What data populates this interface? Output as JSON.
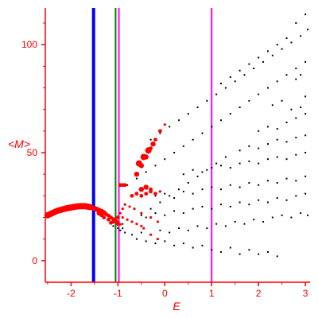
{
  "chart_data": {
    "type": "scatter",
    "title": "",
    "xlabel": "E",
    "ylabel": "<M>",
    "xlim": [
      -2.55,
      3.1
    ],
    "ylim": [
      -10,
      117
    ],
    "x_ticks": [
      -2,
      -1,
      0,
      1,
      2,
      3
    ],
    "x_tick_labels": [
      "-2",
      "-1",
      "0",
      "1",
      "2",
      "3"
    ],
    "y_ticks": [
      0,
      50,
      100
    ],
    "y_tick_labels": [
      "0",
      "50",
      "100"
    ],
    "grid": false,
    "colors": {
      "axis": "#ff0000",
      "black_points": "#000000",
      "red_points": "#ff0000",
      "blue_line": "#0000ff",
      "green_line": "#008000",
      "magenta_line": "#ff00ff"
    },
    "vertical_lines": [
      {
        "x": -1.52,
        "color": "#0000ff"
      },
      {
        "x": -1.05,
        "color": "#008000"
      },
      {
        "x": -0.98,
        "color": "#ff00ff"
      },
      {
        "x": 1.0,
        "color": "#ff00ff"
      }
    ],
    "series": [
      {
        "color": "#000000",
        "marker_size": "small",
        "points": [
          [
            -0.9,
            15
          ],
          [
            -0.7,
            18
          ],
          [
            -0.5,
            21
          ],
          [
            -0.3,
            24
          ],
          [
            -0.1,
            27
          ],
          [
            0.1,
            30
          ],
          [
            0.3,
            33
          ],
          [
            0.5,
            36
          ],
          [
            0.7,
            39
          ],
          [
            0.9,
            42
          ],
          [
            1.1,
            45
          ],
          [
            1.3,
            48
          ],
          [
            -0.8,
            35
          ],
          [
            -0.6,
            38
          ],
          [
            -0.4,
            41
          ],
          [
            -0.2,
            44
          ],
          [
            0.0,
            47
          ],
          [
            0.2,
            50
          ],
          [
            0.4,
            53
          ],
          [
            0.6,
            56
          ],
          [
            0.8,
            59
          ],
          [
            1.0,
            62
          ],
          [
            1.2,
            65
          ],
          [
            1.4,
            68
          ],
          [
            1.6,
            71
          ],
          [
            1.8,
            74
          ],
          [
            2.0,
            77
          ],
          [
            2.2,
            80
          ],
          [
            2.4,
            83
          ],
          [
            2.6,
            86
          ],
          [
            2.8,
            89
          ],
          [
            3.0,
            92
          ],
          [
            -0.3,
            56
          ],
          [
            -0.1,
            59
          ],
          [
            0.1,
            62
          ],
          [
            0.3,
            65
          ],
          [
            0.5,
            68
          ],
          [
            0.7,
            71
          ],
          [
            0.9,
            74
          ],
          [
            1.1,
            77
          ],
          [
            1.3,
            80
          ],
          [
            1.5,
            83
          ],
          [
            1.7,
            86
          ],
          [
            1.9,
            89
          ],
          [
            2.1,
            92
          ],
          [
            2.3,
            95
          ],
          [
            2.5,
            98
          ],
          [
            2.7,
            101
          ],
          [
            2.9,
            104
          ],
          [
            3.05,
            107
          ],
          [
            1.2,
            82
          ],
          [
            1.4,
            85
          ],
          [
            1.6,
            88
          ],
          [
            1.8,
            91
          ],
          [
            2.0,
            94
          ],
          [
            2.2,
            97
          ],
          [
            2.4,
            100
          ],
          [
            2.6,
            103
          ],
          [
            2.8,
            110
          ],
          [
            3.0,
            114
          ],
          [
            -0.6,
            10
          ],
          [
            -0.4,
            9
          ],
          [
            -0.2,
            8
          ],
          [
            0.0,
            9
          ],
          [
            0.2,
            7
          ],
          [
            0.4,
            8
          ],
          [
            0.6,
            6
          ],
          [
            0.8,
            7
          ],
          [
            1.0,
            5
          ],
          [
            1.2,
            4
          ],
          [
            1.4,
            6
          ],
          [
            1.6,
            3
          ],
          [
            1.8,
            5
          ],
          [
            2.0,
            3
          ],
          [
            2.2,
            4
          ],
          [
            2.4,
            2
          ],
          [
            -0.7,
            12
          ],
          [
            -0.5,
            13
          ],
          [
            -0.3,
            12
          ],
          [
            -0.1,
            14
          ],
          [
            0.1,
            13
          ],
          [
            0.3,
            15
          ],
          [
            0.5,
            14
          ],
          [
            0.7,
            16
          ],
          [
            0.9,
            15
          ],
          [
            1.1,
            17
          ],
          [
            1.3,
            16
          ],
          [
            1.5,
            18
          ],
          [
            1.7,
            17
          ],
          [
            1.9,
            19
          ],
          [
            2.1,
            18
          ],
          [
            2.3,
            20
          ],
          [
            2.5,
            21
          ],
          [
            2.7,
            20
          ],
          [
            2.9,
            22
          ],
          [
            3.05,
            21
          ],
          [
            -0.4,
            20
          ],
          [
            -0.2,
            22
          ],
          [
            0.0,
            21
          ],
          [
            0.2,
            23
          ],
          [
            0.4,
            22
          ],
          [
            0.6,
            24
          ],
          [
            0.8,
            25
          ],
          [
            1.0,
            24
          ],
          [
            1.2,
            26
          ],
          [
            1.4,
            25
          ],
          [
            1.6,
            27
          ],
          [
            1.8,
            26
          ],
          [
            2.0,
            28
          ],
          [
            2.2,
            27
          ],
          [
            2.4,
            29
          ],
          [
            2.6,
            28
          ],
          [
            2.8,
            30
          ],
          [
            3.0,
            31
          ],
          [
            -0.2,
            30
          ],
          [
            0.0,
            31
          ],
          [
            0.2,
            29
          ],
          [
            0.4,
            32
          ],
          [
            0.6,
            31
          ],
          [
            0.8,
            33
          ],
          [
            1.0,
            34
          ],
          [
            1.2,
            33
          ],
          [
            1.4,
            35
          ],
          [
            1.6,
            34
          ],
          [
            1.8,
            36
          ],
          [
            2.0,
            35
          ],
          [
            2.2,
            37
          ],
          [
            2.4,
            36
          ],
          [
            2.6,
            38
          ],
          [
            2.8,
            37
          ],
          [
            3.0,
            39
          ],
          [
            0.4,
            40
          ],
          [
            0.6,
            42
          ],
          [
            0.8,
            41
          ],
          [
            1.0,
            43
          ],
          [
            1.2,
            44
          ],
          [
            1.4,
            43
          ],
          [
            1.6,
            45
          ],
          [
            1.8,
            46
          ],
          [
            2.0,
            45
          ],
          [
            2.2,
            47
          ],
          [
            2.4,
            48
          ],
          [
            2.6,
            47
          ],
          [
            2.8,
            49
          ],
          [
            3.0,
            50
          ],
          [
            1.6,
            51
          ],
          [
            1.8,
            53
          ],
          [
            2.0,
            52
          ],
          [
            2.2,
            54
          ],
          [
            2.4,
            56
          ],
          [
            2.6,
            55
          ],
          [
            2.8,
            57
          ],
          [
            3.0,
            58
          ],
          [
            2.0,
            60
          ],
          [
            2.2,
            62
          ],
          [
            2.4,
            61
          ],
          [
            2.6,
            64
          ],
          [
            2.8,
            66
          ],
          [
            3.0,
            68
          ],
          [
            2.9,
            71
          ],
          [
            2.7,
            70
          ],
          [
            2.8,
            84
          ],
          [
            2.9,
            86
          ],
          [
            3.0,
            76
          ],
          [
            2.5,
            74
          ],
          [
            2.3,
            72
          ],
          [
            -1.1,
            16
          ],
          [
            -1.0,
            15
          ],
          [
            -0.95,
            14
          ],
          [
            -0.9,
            17
          ],
          [
            -0.85,
            13
          ]
        ]
      },
      {
        "color": "#ff0000",
        "marker_size": "varying",
        "points": [
          [
            -2.5,
            21,
            5
          ],
          [
            -2.45,
            21.5,
            5
          ],
          [
            -2.4,
            22,
            5
          ],
          [
            -2.35,
            22.5,
            5
          ],
          [
            -2.3,
            23,
            5
          ],
          [
            -2.25,
            23.3,
            5
          ],
          [
            -2.2,
            23.6,
            5
          ],
          [
            -2.15,
            23.9,
            5
          ],
          [
            -2.1,
            24.2,
            5
          ],
          [
            -2.05,
            24.4,
            5
          ],
          [
            -2.0,
            24.6,
            5
          ],
          [
            -1.95,
            24.8,
            5
          ],
          [
            -1.9,
            25,
            5
          ],
          [
            -1.85,
            25.1,
            5
          ],
          [
            -1.8,
            25.2,
            5
          ],
          [
            -1.75,
            25.2,
            5
          ],
          [
            -1.7,
            25.2,
            5
          ],
          [
            -1.65,
            25,
            5
          ],
          [
            -1.6,
            24.8,
            5
          ],
          [
            -1.55,
            24.5,
            4
          ],
          [
            -1.5,
            24.2,
            4
          ],
          [
            -1.45,
            23.8,
            4
          ],
          [
            -1.4,
            23.3,
            4
          ],
          [
            -1.35,
            22.8,
            4
          ],
          [
            -1.3,
            22.2,
            4
          ],
          [
            -1.25,
            21.5,
            3
          ],
          [
            -1.2,
            20.8,
            3
          ],
          [
            -1.15,
            20,
            3
          ],
          [
            -1.1,
            19.2,
            3
          ],
          [
            -1.05,
            18.4,
            3
          ],
          [
            -1.0,
            17.6,
            3
          ],
          [
            -0.95,
            16.8,
            2
          ],
          [
            -1.15,
            17.5,
            3
          ],
          [
            -1.05,
            18.5,
            3
          ],
          [
            -1.0,
            20,
            3
          ],
          [
            -0.95,
            22,
            2
          ],
          [
            -0.9,
            24,
            2
          ],
          [
            -1.4,
            22,
            4
          ],
          [
            -1.35,
            21,
            3
          ],
          [
            -1.3,
            20,
            3
          ],
          [
            -1.2,
            19,
            3
          ],
          [
            -1.1,
            18,
            3
          ],
          [
            -1.0,
            17,
            3
          ],
          [
            -0.6,
            40,
            4
          ],
          [
            -0.5,
            44,
            4
          ],
          [
            -0.4,
            48,
            4
          ],
          [
            -0.3,
            52,
            3
          ],
          [
            -0.2,
            56,
            3
          ],
          [
            -0.1,
            60,
            3
          ],
          [
            0.0,
            63,
            2
          ],
          [
            -0.55,
            45,
            5
          ],
          [
            -0.45,
            48,
            5
          ],
          [
            -0.35,
            51,
            5
          ],
          [
            -0.25,
            54,
            4
          ],
          [
            -0.95,
            35,
            3
          ],
          [
            -0.9,
            35,
            3
          ],
          [
            -0.85,
            35,
            3
          ],
          [
            -0.5,
            33,
            4
          ],
          [
            -0.4,
            34,
            4
          ],
          [
            -0.3,
            33,
            3
          ],
          [
            -0.7,
            30,
            3
          ],
          [
            -0.6,
            31,
            3
          ],
          [
            -0.5,
            30,
            3
          ],
          [
            -0.4,
            31,
            3
          ],
          [
            -0.3,
            32,
            3
          ],
          [
            -0.2,
            31,
            3
          ],
          [
            -0.1,
            32,
            2
          ],
          [
            -0.85,
            26,
            2
          ],
          [
            -0.75,
            25,
            2
          ],
          [
            -0.65,
            24,
            2
          ],
          [
            -0.5,
            22,
            2
          ],
          [
            -0.3,
            20,
            2
          ],
          [
            -0.15,
            18,
            2
          ],
          [
            -0.9,
            20,
            2
          ],
          [
            -0.8,
            19,
            2
          ],
          [
            -0.7,
            18,
            2
          ],
          [
            -0.6,
            17,
            2
          ],
          [
            -0.5,
            16,
            2
          ],
          [
            -0.45,
            15,
            2
          ],
          [
            -0.3,
            12,
            2
          ],
          [
            -0.15,
            10,
            2
          ]
        ]
      }
    ]
  }
}
